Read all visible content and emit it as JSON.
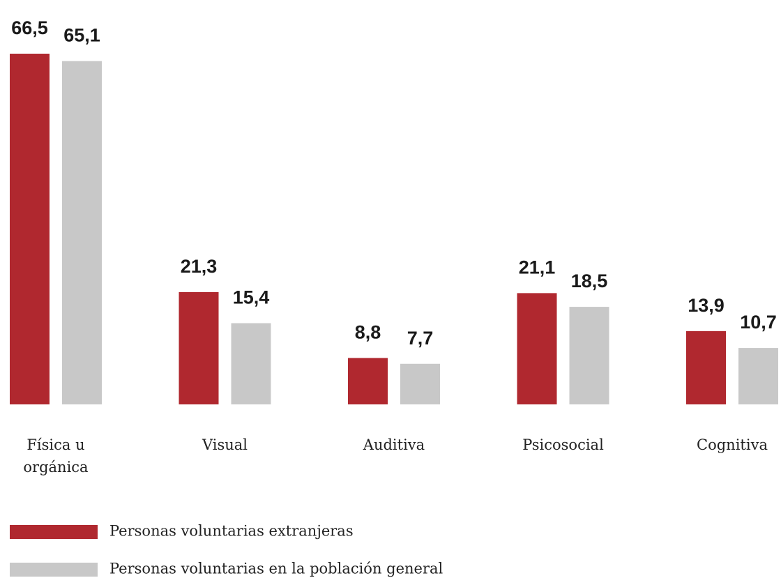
{
  "chart_data": {
    "type": "bar",
    "categories": [
      "Física u orgánica",
      "Visual",
      "Auditiva",
      "Psicosocial",
      "Cognitiva"
    ],
    "series": [
      {
        "name": "Personas voluntarias extranjeras",
        "color": "#b0282f",
        "values": [
          66.5,
          21.3,
          8.8,
          21.1,
          13.9
        ],
        "value_labels": [
          "66,5",
          "21,3",
          "8,8",
          "21,1",
          "13,9"
        ]
      },
      {
        "name": "Personas voluntarias en la población general",
        "color": "#c8c8c8",
        "values": [
          65.1,
          15.4,
          7.7,
          18.5,
          10.7
        ],
        "value_labels": [
          "65,1",
          "15,4",
          "7,7",
          "18,5",
          "10,7"
        ]
      }
    ]
  }
}
